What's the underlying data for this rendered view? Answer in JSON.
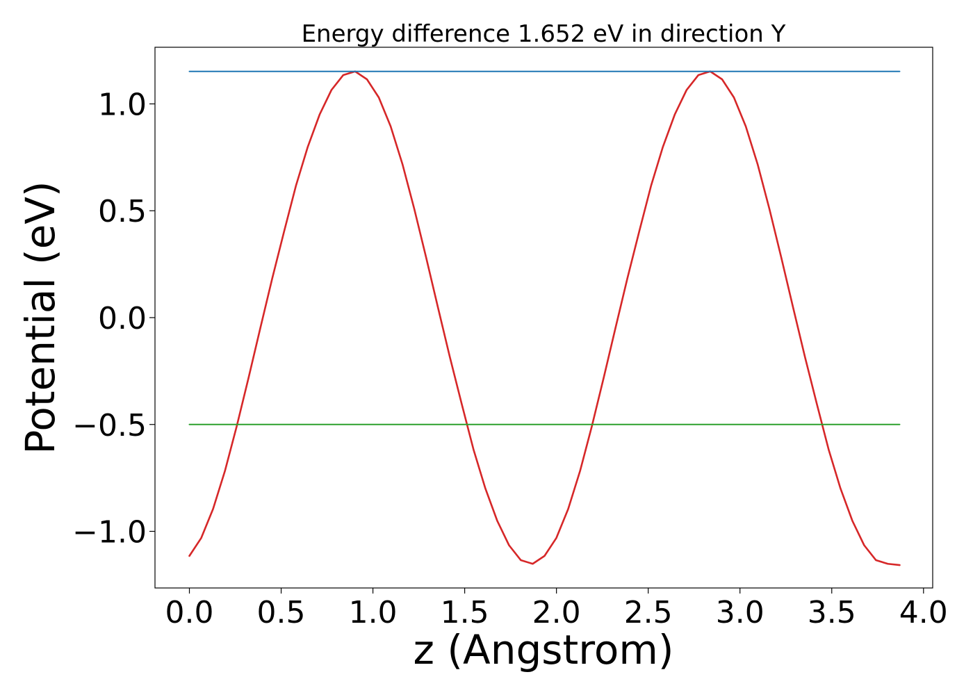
{
  "chart_data": {
    "type": "line",
    "title": "Energy difference 1.652 eV in direction Y",
    "xlabel": "z (Angstrom)",
    "ylabel": "Potential (eV)",
    "xlim": [
      -0.1875,
      4.05
    ],
    "ylim": [
      -1.265,
      1.265
    ],
    "xticks": [
      0.0,
      0.5,
      1.0,
      1.5,
      2.0,
      2.5,
      3.0,
      3.5,
      4.0
    ],
    "xtick_labels": [
      "0.0",
      "0.5",
      "1.0",
      "1.5",
      "2.0",
      "2.5",
      "3.0",
      "3.5",
      "4.0"
    ],
    "yticks": [
      -1.0,
      -0.5,
      0.0,
      0.5,
      1.0
    ],
    "ytick_labels": [
      "−1.0",
      "−0.5",
      "0.0",
      "0.5",
      "1.0"
    ],
    "grid": false,
    "series": [
      {
        "color": "#d62728",
        "x": [
          0.0,
          0.0645,
          0.129,
          0.1935,
          0.258,
          0.3225,
          0.387,
          0.4515,
          0.516,
          0.5805,
          0.645,
          0.7095,
          0.774,
          0.8385,
          0.903,
          0.9675,
          1.032,
          1.0965,
          1.161,
          1.2255,
          1.29,
          1.3545,
          1.419,
          1.4835,
          1.548,
          1.6125,
          1.677,
          1.7415,
          1.806,
          1.8705,
          1.935,
          1.9995,
          2.064,
          2.1285,
          2.193,
          2.2575,
          2.322,
          2.3865,
          2.451,
          2.5155,
          2.58,
          2.6445,
          2.709,
          2.7735,
          2.838,
          2.9025,
          2.967,
          3.0315,
          3.096,
          3.1605,
          3.225,
          3.2895,
          3.354,
          3.4185,
          3.483,
          3.5475,
          3.612,
          3.6765,
          3.741,
          3.8055,
          3.87
        ],
        "y": [
          -1.115,
          -1.031,
          -0.895,
          -0.718,
          -0.508,
          -0.281,
          -0.047,
          0.184,
          0.403,
          0.617,
          0.799,
          0.95,
          1.065,
          1.135,
          1.152,
          1.115,
          1.03,
          0.895,
          0.718,
          0.508,
          0.281,
          0.047,
          -0.184,
          -0.403,
          -0.617,
          -0.799,
          -0.95,
          -1.065,
          -1.135,
          -1.152,
          -1.115,
          -1.031,
          -0.895,
          -0.718,
          -0.508,
          -0.281,
          -0.047,
          0.184,
          0.403,
          0.617,
          0.799,
          0.95,
          1.065,
          1.135,
          1.152,
          1.115,
          1.03,
          0.895,
          0.718,
          0.508,
          0.281,
          0.047,
          -0.184,
          -0.403,
          -0.617,
          -0.799,
          -0.95,
          -1.065,
          -1.135,
          -1.152,
          -1.158
        ]
      },
      {
        "color": "#1f77b4",
        "x": [
          0.0,
          3.87
        ],
        "y": [
          1.152,
          1.152
        ]
      },
      {
        "color": "#2ca02c",
        "x": [
          0.0,
          3.87
        ],
        "y": [
          -0.5,
          -0.5
        ]
      }
    ]
  }
}
